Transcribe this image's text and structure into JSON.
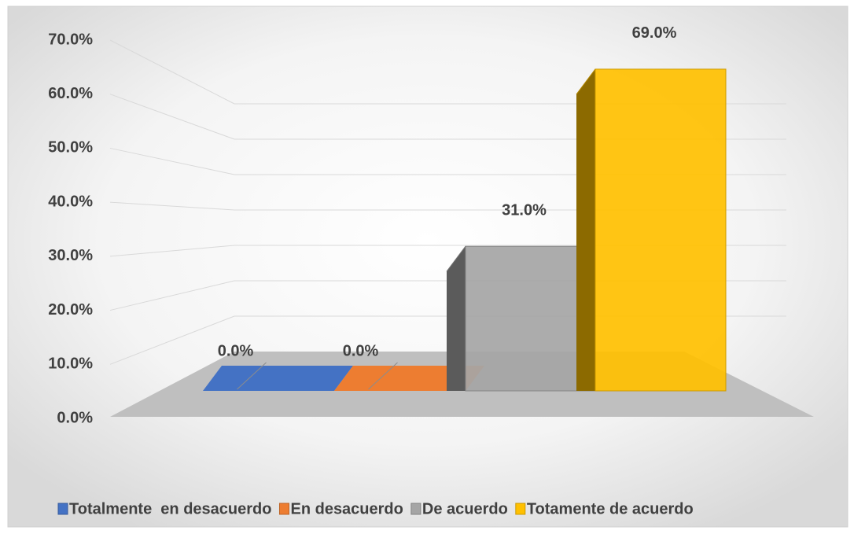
{
  "chart_data": {
    "type": "bar",
    "categories": [
      null
    ],
    "series": [
      {
        "name": "Totalmente  en desacuerdo",
        "color": "#4472c4",
        "values": [
          0
        ],
        "value_labels": [
          "0.0%"
        ]
      },
      {
        "name": "En desacuerdo",
        "color": "#ed7d31",
        "values": [
          0
        ],
        "value_labels": [
          "0.0%"
        ]
      },
      {
        "name": "De acuerdo",
        "color": "#a5a5a5",
        "values": [
          31
        ],
        "value_labels": [
          "31.0%"
        ]
      },
      {
        "name": "Totamente de acuerdo",
        "color": "#ffc000",
        "values": [
          69
        ],
        "value_labels": [
          "69.0%"
        ]
      }
    ],
    "ylim": [
      0,
      70
    ],
    "yticks": [
      {
        "value": 0,
        "label": "0.0%"
      },
      {
        "value": 10,
        "label": "10.0%"
      },
      {
        "value": 20,
        "label": "20.0%"
      },
      {
        "value": 30,
        "label": "30.0%"
      },
      {
        "value": 40,
        "label": "40.0%"
      },
      {
        "value": 50,
        "label": "50.0%"
      },
      {
        "value": 60,
        "label": "60.0%"
      },
      {
        "value": 70,
        "label": "70.0%"
      }
    ],
    "grid": true,
    "legend": "bottom"
  }
}
